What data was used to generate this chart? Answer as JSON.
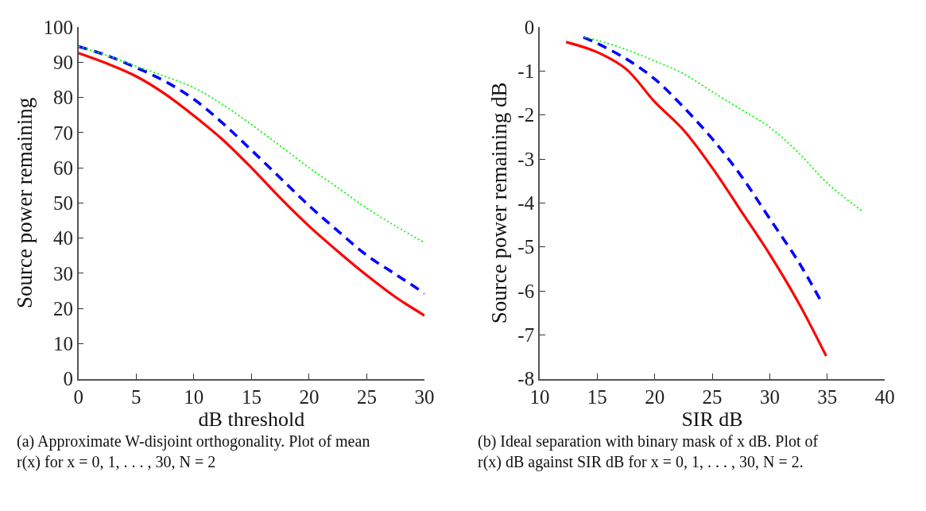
{
  "chart_data": [
    {
      "type": "line",
      "xlabel": "dB threshold",
      "ylabel": "Source power remaining",
      "xlim": [
        0,
        30
      ],
      "ylim": [
        0,
        100
      ],
      "xticks": [
        0,
        5,
        10,
        15,
        20,
        25,
        30
      ],
      "yticks": [
        0,
        10,
        20,
        30,
        40,
        50,
        60,
        70,
        80,
        90,
        100
      ],
      "marker": "none",
      "annotations": [
        "(a) Approximate W-disjoint orthogonality. Plot of mean r(x) for x = 0, 1, . . . , 30, N = 2"
      ],
      "series": [
        {
          "color": "#ff0000",
          "line_style": "solid",
          "x": [
            0,
            2.5,
            5,
            7.5,
            10,
            12.5,
            15,
            17.5,
            20,
            22.5,
            25,
            27.5,
            30
          ],
          "values": [
            92.6,
            89.6,
            86,
            81,
            74.8,
            68,
            60,
            51.4,
            43.4,
            36.2,
            29.4,
            23.2,
            18
          ]
        },
        {
          "color": "#0000ff",
          "line_style": "dashed",
          "x": [
            0,
            2.5,
            5,
            7.5,
            10,
            12.5,
            15,
            17.5,
            20,
            22.5,
            25,
            27.5,
            30
          ],
          "values": [
            94.5,
            91.9,
            88.5,
            84.6,
            79.5,
            72.7,
            65,
            57.1,
            49.2,
            42,
            35.1,
            29.7,
            24.3
          ]
        },
        {
          "color": "#00ff00",
          "line_style": "dotted",
          "x": [
            0,
            2.5,
            5,
            7.5,
            10,
            12.5,
            15,
            17.5,
            20,
            22.5,
            25,
            27.5,
            30
          ],
          "values": [
            94.5,
            91.9,
            88.9,
            86,
            82.8,
            78,
            72.3,
            66.2,
            60,
            54.3,
            48.5,
            43.4,
            38.7
          ]
        }
      ]
    },
    {
      "type": "line",
      "xlabel": "SIR dB",
      "ylabel": "Source power remaining dB",
      "xlim": [
        10,
        40
      ],
      "ylim": [
        -8,
        0
      ],
      "xticks": [
        10,
        15,
        20,
        25,
        30,
        35,
        40
      ],
      "yticks": [
        -8,
        -7,
        -6,
        -5,
        -4,
        -3,
        -2,
        -1,
        0
      ],
      "marker": "none",
      "annotations": [
        "(b) Ideal separation with binary mask of x dB. Plot of r(x) dB against SIR dB for x = 0, 1, . . . , 30, N = 2."
      ],
      "series": [
        {
          "color": "#ff0000",
          "line_style": "solid",
          "x": [
            12.3,
            15,
            17.5,
            20,
            22.5,
            25,
            27.5,
            30,
            32.5,
            34.9
          ],
          "values": [
            -0.34,
            -0.57,
            -0.95,
            -1.7,
            -2.34,
            -3.2,
            -4.18,
            -5.17,
            -6.27,
            -7.48
          ]
        },
        {
          "color": "#0000ff",
          "line_style": "dashed",
          "x": [
            13.8,
            15,
            17.5,
            20,
            22.5,
            25,
            27.5,
            30,
            32.5,
            34.4
          ],
          "values": [
            -0.23,
            -0.37,
            -0.72,
            -1.18,
            -1.82,
            -2.54,
            -3.38,
            -4.36,
            -5.34,
            -6.21
          ]
        },
        {
          "color": "#00ff00",
          "line_style": "dotted",
          "x": [
            13.9,
            15,
            17.5,
            20,
            22.5,
            25,
            27.5,
            30,
            32.5,
            35,
            38.1
          ],
          "values": [
            -0.23,
            -0.3,
            -0.51,
            -0.77,
            -1.06,
            -1.47,
            -1.87,
            -2.28,
            -2.86,
            -3.55,
            -4.2
          ]
        }
      ]
    }
  ]
}
